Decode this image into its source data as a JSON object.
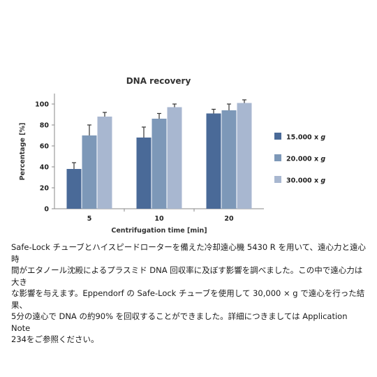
{
  "chart_data": {
    "type": "bar",
    "title": "DNA recovery",
    "xlabel": "Centrifugation time [min]",
    "ylabel": "Percentage [%]",
    "categories": [
      "5",
      "10",
      "20"
    ],
    "ylim": [
      0,
      110
    ],
    "yticks": [
      0,
      20,
      40,
      60,
      80,
      100
    ],
    "grid": false,
    "legend_position": "right",
    "error_bars": true,
    "series": [
      {
        "name": "15.000 x g",
        "name_text": "15.000 x ",
        "name_italic": "g",
        "color": "#4a6a98",
        "values": [
          38,
          68,
          91
        ],
        "errors": [
          6,
          10,
          4
        ]
      },
      {
        "name": "20.000 x g",
        "name_text": "20.000 x ",
        "name_italic": "g",
        "color": "#7d98b8",
        "values": [
          70,
          86,
          94
        ],
        "errors": [
          10,
          5,
          6
        ]
      },
      {
        "name": "30.000 x g",
        "name_text": "30.000 x ",
        "name_italic": "g",
        "color": "#a8b7d0",
        "values": [
          88,
          97,
          101
        ],
        "errors": [
          4,
          3,
          3
        ]
      }
    ]
  },
  "caption": {
    "lines": [
      "Safe-Lock チューブとハイスピードローターを備えた冷却遠心機 5430 R を用いて、遠心力と遠心時",
      "間がエタノール沈殿によるプラスミド DNA 回収率に及ぼす影響を調べました。この中で遠心力は大き",
      "な影響を与えます。Eppendorf の Safe-Lock チューブを使用して 30,000 × g で遠心を行った結果、",
      "5分の遠心で DNA の約90% を回収することができました。詳細につきましては Application Note",
      "234をご参照ください。"
    ]
  }
}
